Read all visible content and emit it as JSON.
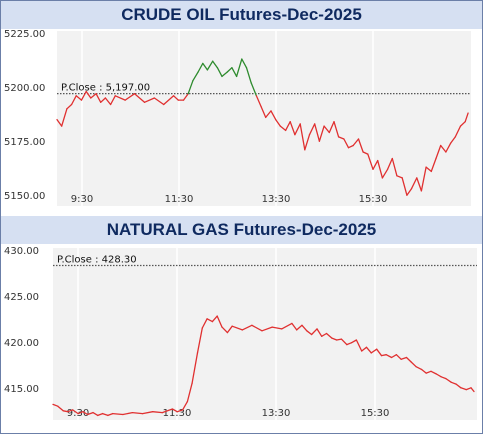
{
  "chart_data": [
    {
      "type": "line",
      "title": "CRUDE OIL Futures-Dec-2025",
      "reference_line": {
        "label": "P.Close : 5,197.00",
        "value": 5197.0
      },
      "x_ticks": [
        "9:30",
        "11:30",
        "13:30",
        "15:30"
      ],
      "y_ticks": [
        "5225.00",
        "5200.00",
        "5175.00",
        "5150.00"
      ],
      "ylim": [
        5145,
        5226
      ],
      "xlim": [
        9.0,
        16.1
      ],
      "grid": "vertical",
      "colors": {
        "above": "#2e8b2e",
        "below": "#e03030",
        "reference": "#555555"
      },
      "series": [
        {
          "x": [
            9.0,
            9.08,
            9.17,
            9.25,
            9.33,
            9.42,
            9.5,
            9.58,
            9.67,
            9.75,
            9.83,
            9.92,
            10.0,
            10.17,
            10.33,
            10.5,
            10.67,
            10.83,
            11.0,
            11.08,
            11.17,
            11.25,
            11.33,
            11.42,
            11.5,
            11.58,
            11.67,
            11.75,
            11.83,
            11.92,
            12.0,
            12.08,
            12.17,
            12.25,
            12.33,
            12.42,
            12.5,
            12.58,
            12.67,
            12.75,
            12.83,
            12.92,
            13.0,
            13.08,
            13.17,
            13.25,
            13.33,
            13.42,
            13.5,
            13.58,
            13.67,
            13.75,
            13.83,
            13.92,
            14.0,
            14.08,
            14.17,
            14.25,
            14.33,
            14.42,
            14.5,
            14.58,
            14.67,
            14.75,
            14.83,
            14.92,
            15.0,
            15.08,
            15.17,
            15.25,
            15.33,
            15.42,
            15.5,
            15.58,
            15.67,
            15.75,
            15.83,
            15.92,
            16.0,
            16.05
          ],
          "values": [
            5185,
            5182,
            5190,
            5192,
            5196,
            5194,
            5198,
            5195,
            5197,
            5193,
            5195,
            5192,
            5196,
            5194,
            5197,
            5193,
            5195,
            5192,
            5196,
            5194,
            5194,
            5197,
            5203,
            5207,
            5211,
            5208,
            5212,
            5209,
            5205,
            5207,
            5209,
            5205,
            5213,
            5209,
            5202,
            5196,
            5191,
            5186,
            5189,
            5185,
            5182,
            5180,
            5184,
            5178,
            5183,
            5171,
            5178,
            5183,
            5175,
            5182,
            5179,
            5184,
            5177,
            5176,
            5172,
            5173,
            5176,
            5170,
            5169,
            5162,
            5166,
            5158,
            5162,
            5167,
            5159,
            5158,
            5150,
            5153,
            5158,
            5152,
            5163,
            5161,
            5167,
            5173,
            5170,
            5174,
            5177,
            5182,
            5184,
            5188
          ]
        }
      ]
    },
    {
      "type": "line",
      "title": "NATURAL GAS Futures-Dec-2025",
      "reference_line": {
        "label": "P.Close : 428.30",
        "value": 428.3
      },
      "x_ticks": [
        "9:30",
        "11:30",
        "13:30",
        "15:30"
      ],
      "y_ticks": [
        "430.00",
        "425.00",
        "420.00",
        "415.00"
      ],
      "ylim": [
        411.5,
        430.2
      ],
      "xlim": [
        9.0,
        16.1
      ],
      "grid": "vertical",
      "colors": {
        "above": "#2e8b2e",
        "below": "#e03030",
        "reference": "#555555"
      },
      "series": [
        {
          "x": [
            9.0,
            9.08,
            9.17,
            9.25,
            9.33,
            9.42,
            9.5,
            9.58,
            9.67,
            9.75,
            9.83,
            9.92,
            10.0,
            10.17,
            10.33,
            10.5,
            10.67,
            10.83,
            11.0,
            11.08,
            11.17,
            11.25,
            11.33,
            11.42,
            11.5,
            11.58,
            11.67,
            11.75,
            11.83,
            11.92,
            12.0,
            12.17,
            12.33,
            12.5,
            12.67,
            12.83,
            13.0,
            13.08,
            13.17,
            13.25,
            13.33,
            13.42,
            13.5,
            13.58,
            13.67,
            13.75,
            13.83,
            13.92,
            14.0,
            14.08,
            14.17,
            14.25,
            14.33,
            14.42,
            14.5,
            14.58,
            14.67,
            14.75,
            14.83,
            14.92,
            15.0,
            15.08,
            15.17,
            15.25,
            15.33,
            15.42,
            15.5,
            15.58,
            15.67,
            15.75,
            15.83,
            15.92,
            16.0,
            16.05
          ],
          "values": [
            413.2,
            413.0,
            412.5,
            412.4,
            412.6,
            412.2,
            412.4,
            412.1,
            412.3,
            412.0,
            412.2,
            412.0,
            412.2,
            412.1,
            412.3,
            412.2,
            412.4,
            412.3,
            412.7,
            412.4,
            412.6,
            413.5,
            415.5,
            418.8,
            421.5,
            422.5,
            422.2,
            422.8,
            421.6,
            421.0,
            421.7,
            421.3,
            421.8,
            421.2,
            421.6,
            421.4,
            422.0,
            421.3,
            421.8,
            421.2,
            420.8,
            421.4,
            420.6,
            420.9,
            420.4,
            420.2,
            420.3,
            419.7,
            419.9,
            420.2,
            419.0,
            419.4,
            418.8,
            419.2,
            418.5,
            418.6,
            418.3,
            418.6,
            418.1,
            418.3,
            417.8,
            417.3,
            417.0,
            416.6,
            416.8,
            416.5,
            416.2,
            416.0,
            415.6,
            415.4,
            415.0,
            414.8,
            415.0,
            414.6
          ]
        }
      ]
    }
  ]
}
